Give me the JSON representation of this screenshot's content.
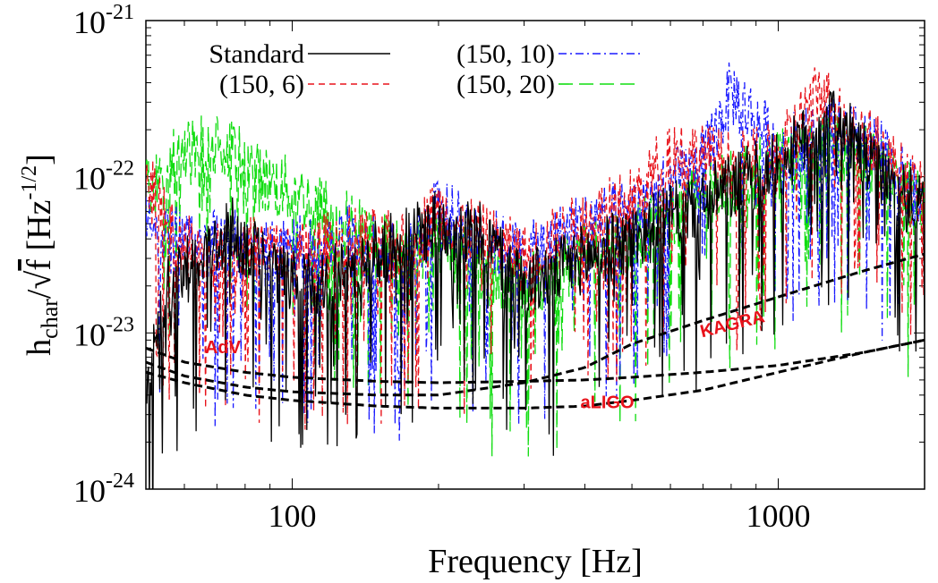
{
  "chart_data": {
    "type": "line",
    "xlabel": "Frequency [Hz]",
    "ylabel": "h_char/√f [Hz^-1/2]",
    "ylabel_parts": {
      "h": "h",
      "sub": "char",
      "slash": "/",
      "sqrt": "√",
      "f": "f",
      "unit": "[Hz",
      "exp": "-1/2",
      "close": "]"
    },
    "xscale": "log",
    "yscale": "log",
    "xlim": [
      50,
      2000
    ],
    "ylim": [
      1e-24,
      1e-21
    ],
    "x_ticks": [
      {
        "value": 100,
        "label": "100"
      },
      {
        "value": 1000,
        "label": "1000"
      }
    ],
    "y_ticks": [
      {
        "value": 1e-24,
        "base": "10",
        "exp": "-24"
      },
      {
        "value": 1e-23,
        "base": "10",
        "exp": "-23"
      },
      {
        "value": 1e-22,
        "base": "10",
        "exp": "-22"
      },
      {
        "value": 1e-21,
        "base": "10",
        "exp": "-21"
      }
    ],
    "grid": false,
    "legend_position": "top-left",
    "series": [
      {
        "name": "Standard",
        "color": "#000000",
        "dash": "solid",
        "x": [
          50,
          55,
          65,
          75,
          85,
          100,
          130,
          170,
          200,
          250,
          300,
          400,
          500,
          700,
          1000,
          1300,
          1600,
          2000
        ],
        "y": [
          4e-24,
          2e-23,
          3e-23,
          4.5e-23,
          3e-23,
          2e-23,
          2.5e-23,
          4e-23,
          5e-23,
          4e-23,
          2e-23,
          3e-23,
          4e-23,
          7e-23,
          1.2e-22,
          2.5e-22,
          1e-22,
          6e-23
        ]
      },
      {
        "name": "(150, 10)",
        "color": "#1a1aff",
        "dash": "dash-dot",
        "x": [
          50,
          55,
          65,
          75,
          85,
          100,
          130,
          170,
          200,
          250,
          300,
          400,
          500,
          700,
          800,
          1000,
          1300,
          1600,
          2000
        ],
        "y": [
          5e-23,
          4e-23,
          3.5e-23,
          4e-23,
          3e-23,
          3.5e-23,
          4e-23,
          3e-23,
          6e-23,
          4e-23,
          3e-23,
          5e-23,
          6e-23,
          1.2e-22,
          3.5e-22,
          1.5e-22,
          2e-22,
          1.5e-22,
          6e-23
        ]
      },
      {
        "name": "(150, 6)",
        "color": "#e8131b",
        "dash": "dashed",
        "x": [
          50,
          55,
          65,
          75,
          85,
          100,
          130,
          170,
          200,
          250,
          300,
          400,
          500,
          600,
          800,
          1000,
          1200,
          1600,
          2000
        ],
        "y": [
          1e-22,
          5e-23,
          3e-23,
          3e-23,
          3.5e-23,
          3e-23,
          4e-23,
          3.5e-23,
          6e-23,
          4e-23,
          3e-23,
          5e-23,
          7e-23,
          1.5e-22,
          1.2e-22,
          1.3e-22,
          3.5e-22,
          1.5e-22,
          7e-23
        ]
      },
      {
        "name": "(150, 20)",
        "color": "#11dd11",
        "dash": "long-dash",
        "x": [
          50,
          55,
          65,
          75,
          85,
          100,
          130,
          170,
          200,
          250,
          300,
          400,
          500,
          700,
          1000,
          1300,
          1600,
          2000
        ],
        "y": [
          8e-23,
          1.2e-22,
          1.6e-22,
          1.5e-22,
          1e-22,
          8e-23,
          5e-23,
          3e-23,
          4e-23,
          2.5e-23,
          2e-23,
          3e-23,
          4e-23,
          8e-23,
          1.2e-22,
          1.5e-22,
          1.2e-22,
          6e-23
        ]
      }
    ],
    "sensitivity_curves": [
      {
        "name": "AdV",
        "color": "#000000",
        "x": [
          50,
          60,
          80,
          100,
          150,
          200,
          300,
          400,
          500,
          700,
          1000,
          1500,
          2000
        ],
        "y": [
          8e-24,
          6.5e-24,
          5.6e-24,
          5.2e-24,
          4.9e-24,
          4.8e-24,
          4.9e-24,
          5e-24,
          5.2e-24,
          5.6e-24,
          6.2e-24,
          7.5e-24,
          9e-24
        ]
      },
      {
        "name": "aLIGO",
        "color": "#000000",
        "x": [
          50,
          60,
          80,
          100,
          150,
          200,
          300,
          400,
          500,
          700,
          1000,
          1500,
          2000
        ],
        "y": [
          5.6e-24,
          4.8e-24,
          4e-24,
          3.7e-24,
          3.4e-24,
          3.3e-24,
          3.3e-24,
          3.4e-24,
          3.7e-24,
          4.3e-24,
          5.6e-24,
          7.5e-24,
          9e-24
        ]
      },
      {
        "name": "KAGRA",
        "color": "#000000",
        "x": [
          50,
          60,
          80,
          100,
          150,
          200,
          300,
          400,
          500,
          700,
          1000,
          1500,
          2000
        ],
        "y": [
          6.5e-24,
          5.3e-24,
          4.5e-24,
          4.2e-24,
          4e-24,
          4e-24,
          4.8e-24,
          6e-24,
          8.5e-24,
          1.2e-23,
          1.7e-23,
          2.5e-23,
          3.2e-23
        ]
      }
    ],
    "annotations": [
      {
        "text": "AdV",
        "x": 72,
        "y": 7.4e-24,
        "rotate": 0
      },
      {
        "text": "aLIGO",
        "x": 445,
        "y": 3.3e-24,
        "rotate": 0
      },
      {
        "text": "KAGRA",
        "x": 810,
        "y": 1.05e-23,
        "rotate": -14
      }
    ]
  }
}
